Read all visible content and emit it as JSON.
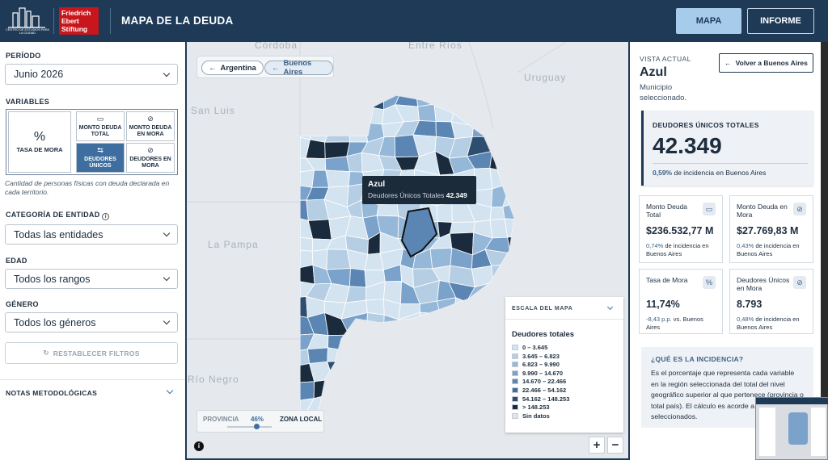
{
  "header": {
    "logo_text": "CENTRO DE ESTUDIOS PARA LA CIUDAD",
    "foundation": [
      "Friedrich",
      "Ebert",
      "Stiftung"
    ],
    "title": "MAPA DE LA DEUDA",
    "nav": [
      "MAPA",
      "INFORME"
    ]
  },
  "filters": {
    "period_label": "PERÍODO",
    "period": "Junio 2026",
    "variables_label": "VARIABLES",
    "variables": [
      "TASA DE MORA",
      "MONTO DEUDA TOTAL",
      "MONTO DEUDA EN MORA",
      "DEUDORES ÚNICOS",
      "DEUDORES EN MORA"
    ],
    "variable_note": "Cantidad de personas físicas con deuda declarada en cada territorio.",
    "entity_label": "CATEGORÍA DE ENTIDAD",
    "entity": "Todas las entidades",
    "age_label": "EDAD",
    "age": "Todos los rangos",
    "gender_label": "GÉNERO",
    "gender": "Todos los géneros",
    "reset": "RESTABLECER FILTROS",
    "notes": "NOTAS METODOLÓGICAS"
  },
  "map": {
    "breadcrumbs": [
      "Argentina",
      "Buenos Aires"
    ],
    "place_labels": [
      "Córdoba",
      "Entre Ríos",
      "Uruguay",
      "San Luis",
      "La Pampa",
      "Río Negro"
    ],
    "tooltip": {
      "name": "Azul",
      "metric": "Deudores Únicos Totales",
      "value": "42.349"
    },
    "legend": {
      "header": "ESCALA DEL MAPA",
      "title": "Deudores totales",
      "items": [
        {
          "label": "0 – 3.645",
          "color": "#d4e3f0"
        },
        {
          "label": "3.645 – 6.823",
          "color": "#b5cee4"
        },
        {
          "label": "6.823 – 9.990",
          "color": "#95b8d9"
        },
        {
          "label": "9.990 – 14.670",
          "color": "#7aa2cb"
        },
        {
          "label": "14.670 – 22.466",
          "color": "#5b86b4"
        },
        {
          "label": "22.466 – 54.162",
          "color": "#456d98"
        },
        {
          "label": "54.162 – 148.253",
          "color": "#2e4e70"
        },
        {
          "label": "> 148.253",
          "color": "#1a2b3e"
        },
        {
          "label": "Sin datos",
          "color": "#e4e4e4"
        }
      ]
    },
    "slider": {
      "left": "PROVINCIA",
      "value": "46%",
      "right": "ZONA LOCAL"
    }
  },
  "summary": {
    "view_label": "VISTA ACTUAL",
    "name": "Azul",
    "kind": "Municipio seleccionado.",
    "back": "Volver a Buenos Aires",
    "main": {
      "label": "DEUDORES ÚNICOS TOTALES",
      "value": "42.349",
      "delta": "0,59%",
      "delta_text": "de incidencia en Buenos Aires"
    },
    "cards": [
      {
        "label": "Monto Deuda Total",
        "value": "$236.532,77 M",
        "delta": "0,74%",
        "delta_text": "de incidencia en Buenos Aires"
      },
      {
        "label": "Monto Deuda en Mora",
        "value": "$27.769,83 M",
        "delta": "0,43%",
        "delta_text": "de incidencia en Buenos Aires"
      },
      {
        "label": "Tasa de Mora",
        "value": "11,74%",
        "delta": "-8,43 p.p.",
        "delta_text": "vs. Buenos Aires"
      },
      {
        "label": "Deudores Únicos en Mora",
        "value": "8.793",
        "delta": "0,48%",
        "delta_text": "de incidencia en Buenos Aires"
      }
    ],
    "info_title": "¿QUÉ ES LA INCIDENCIA?",
    "info_text": "Es el porcentaje que representa cada variable en la región seleccionada del total del nivel geográfico superior al que pertenece (provincia o total país). El cálculo es acorde a los filtros seleccionados."
  }
}
